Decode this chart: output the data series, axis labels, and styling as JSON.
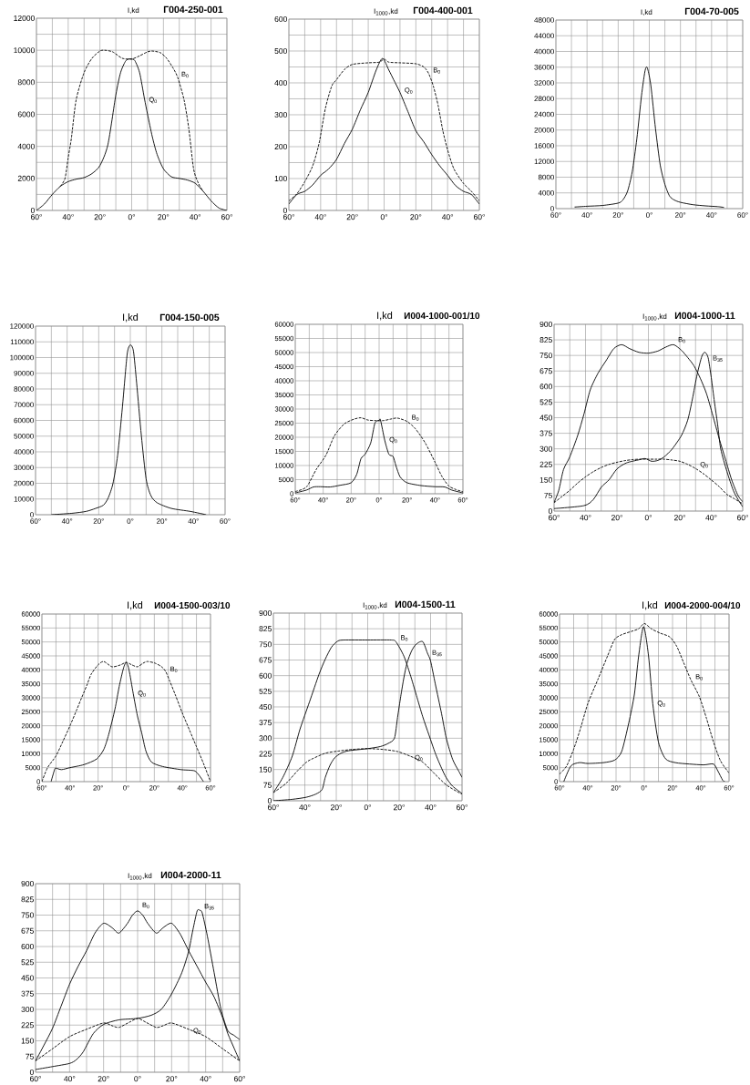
{
  "chart_data": [
    {
      "type": "line",
      "title": "Г004-250-001",
      "ylabel": "I,kd",
      "xlim": [
        -60,
        60
      ],
      "ylim": [
        0,
        12000
      ],
      "grid": true,
      "xticks": [
        {
          "value": -60,
          "label": "60°"
        },
        {
          "value": -50,
          "label": null
        },
        {
          "value": -40,
          "label": "40°"
        },
        {
          "value": -30,
          "label": null
        },
        {
          "value": -20,
          "label": "20°"
        },
        {
          "value": -10,
          "label": null
        },
        {
          "value": 0,
          "label": "0°"
        },
        {
          "value": 10,
          "label": null
        },
        {
          "value": 20,
          "label": "20°"
        },
        {
          "value": 30,
          "label": null
        },
        {
          "value": 40,
          "label": "40°"
        },
        {
          "value": 50,
          "label": null
        },
        {
          "value": 60,
          "label": "60°"
        }
      ],
      "yticks": [
        0,
        {
          "value": 1000,
          "label": null
        },
        2000,
        {
          "value": 3000,
          "label": null
        },
        4000,
        {
          "value": 5000,
          "label": null
        },
        6000,
        {
          "value": 7000,
          "label": null
        },
        8000,
        {
          "value": 9000,
          "label": null
        },
        10000,
        {
          "value": 11000,
          "label": null
        },
        12000
      ],
      "series": [
        {
          "name": "B$_{0}$",
          "color": "#000000",
          "line_style": "dashed",
          "x": [
            -45,
            -42,
            -40,
            -38,
            -35,
            -30,
            -25,
            -20,
            -17,
            -12,
            -6,
            0,
            5,
            10,
            13,
            18,
            22,
            26,
            29,
            33,
            36,
            39,
            42,
            45
          ],
          "values": [
            1500,
            2000,
            3300,
            4500,
            6900,
            8600,
            9500,
            9950,
            10000,
            9900,
            9500,
            9450,
            9650,
            9900,
            9950,
            9850,
            9500,
            8900,
            8300,
            6900,
            5100,
            2600,
            1700,
            1200
          ]
        },
        {
          "name": "Q$_{0}$",
          "color": "#000000",
          "line_style": "solid",
          "x": [
            -60,
            -55,
            -50,
            -45,
            -40,
            -35,
            -30,
            -25,
            -20,
            -15,
            -10,
            -7,
            -4,
            -2,
            0,
            2,
            5,
            8,
            10,
            13,
            16,
            20,
            25,
            30,
            35,
            40,
            45,
            50,
            55,
            60
          ],
          "values": [
            0,
            400,
            1000,
            1500,
            1800,
            1950,
            2050,
            2300,
            2800,
            4100,
            7200,
            8600,
            9300,
            9450,
            9450,
            9350,
            8600,
            7000,
            6000,
            4600,
            3500,
            2600,
            2100,
            2000,
            1900,
            1700,
            1200,
            600,
            150,
            0
          ]
        }
      ]
    },
    {
      "type": "line",
      "title": "Г004-400-001",
      "ylabel": "I$_{1000}$,kd",
      "xlim": [
        -60,
        60
      ],
      "ylim": [
        0,
        600
      ],
      "grid": true,
      "xticks": [
        {
          "value": -60,
          "label": "60°"
        },
        {
          "value": -50,
          "label": null
        },
        {
          "value": -40,
          "label": "40°"
        },
        {
          "value": -30,
          "label": null
        },
        {
          "value": -20,
          "label": "20°"
        },
        {
          "value": -10,
          "label": null
        },
        {
          "value": 0,
          "label": "0°"
        },
        {
          "value": 10,
          "label": null
        },
        {
          "value": 20,
          "label": "20°"
        },
        {
          "value": 30,
          "label": null
        },
        {
          "value": 40,
          "label": "40°"
        },
        {
          "value": 50,
          "label": null
        },
        {
          "value": 60,
          "label": "60°"
        }
      ],
      "yticks": [
        0,
        {
          "value": 50,
          "label": null
        },
        100,
        {
          "value": 150,
          "label": null
        },
        200,
        {
          "value": 250,
          "label": null
        },
        300,
        {
          "value": 350,
          "label": null
        },
        400,
        {
          "value": 450,
          "label": null
        },
        500,
        {
          "value": 550,
          "label": null
        },
        600
      ],
      "series": [
        {
          "name": "B$_{0}$",
          "color": "#000000",
          "line_style": "dashed",
          "x": [
            -60,
            -55,
            -50,
            -45,
            -41,
            -37,
            -33,
            -30,
            -25,
            -20,
            -10,
            -3,
            0,
            3,
            10,
            20,
            25,
            28,
            31,
            34,
            37,
            40,
            44,
            50,
            55,
            60
          ],
          "values": [
            30,
            52,
            90,
            140,
            210,
            320,
            390,
            410,
            442,
            458,
            463,
            465,
            475,
            465,
            463,
            460,
            450,
            430,
            390,
            330,
            250,
            190,
            130,
            85,
            60,
            30
          ]
        },
        {
          "name": "Q$_{0}$",
          "color": "#000000",
          "line_style": "solid",
          "x": [
            -60,
            -55,
            -50,
            -45,
            -40,
            -35,
            -30,
            -25,
            -20,
            -15,
            -10,
            -5,
            -1,
            3,
            6,
            10,
            15,
            20,
            25,
            30,
            35,
            40,
            45,
            50,
            55,
            60
          ],
          "values": [
            20,
            50,
            60,
            80,
            110,
            130,
            160,
            210,
            255,
            315,
            370,
            440,
            477,
            440,
            410,
            370,
            310,
            250,
            215,
            175,
            140,
            110,
            78,
            60,
            50,
            20
          ]
        }
      ]
    },
    {
      "type": "line",
      "title": "Г004-70-005",
      "ylabel": "I,kd",
      "xlim": [
        -60,
        60
      ],
      "ylim": [
        0,
        48000
      ],
      "grid": true,
      "xticks": [
        {
          "value": -60,
          "label": "60°"
        },
        {
          "value": -50,
          "label": null
        },
        {
          "value": -40,
          "label": "40°"
        },
        {
          "value": -30,
          "label": null
        },
        {
          "value": -20,
          "label": "20°"
        },
        {
          "value": -10,
          "label": null
        },
        {
          "value": 0,
          "label": "0°"
        },
        {
          "value": 10,
          "label": null
        },
        {
          "value": 20,
          "label": "20°"
        },
        {
          "value": 30,
          "label": null
        },
        {
          "value": 40,
          "label": "40°"
        },
        {
          "value": 50,
          "label": null
        },
        {
          "value": 60,
          "label": "60°"
        }
      ],
      "yticks": [
        0,
        4000,
        8000,
        12000,
        16000,
        20000,
        24000,
        28000,
        32000,
        36000,
        40000,
        44000,
        48000
      ],
      "series": [
        {
          "color": "#000000",
          "line_style": "solid",
          "x": [
            -48,
            -40,
            -30,
            -20,
            -17,
            -14,
            -11,
            -8,
            -5,
            -3,
            -2,
            -1,
            1,
            4,
            7,
            10,
            13,
            16,
            20,
            28,
            36,
            44,
            48
          ],
          "values": [
            400,
            600,
            800,
            1400,
            2200,
            4400,
            9300,
            17800,
            28800,
            34500,
            36000,
            35500,
            31300,
            20300,
            11100,
            6200,
            3200,
            2200,
            1600,
            1000,
            700,
            500,
            300
          ]
        }
      ]
    },
    {
      "type": "line",
      "title": "Г004-150-005",
      "ylabel": "I,kd",
      "xlim": [
        -60,
        60
      ],
      "ylim": [
        0,
        120000
      ],
      "grid": true,
      "xticks": [
        {
          "value": -60,
          "label": "60°"
        },
        {
          "value": -50,
          "label": null
        },
        {
          "value": -40,
          "label": "40°"
        },
        {
          "value": -30,
          "label": null
        },
        {
          "value": -20,
          "label": "20°"
        },
        {
          "value": -10,
          "label": null
        },
        {
          "value": 0,
          "label": "0°"
        },
        {
          "value": 10,
          "label": null
        },
        {
          "value": 20,
          "label": "20°"
        },
        {
          "value": 30,
          "label": null
        },
        {
          "value": 40,
          "label": "40°"
        },
        {
          "value": 50,
          "label": null
        },
        {
          "value": 60,
          "label": "60°"
        }
      ],
      "yticks": [
        0,
        10000,
        20000,
        30000,
        40000,
        50000,
        60000,
        70000,
        80000,
        90000,
        100000,
        110000,
        120000
      ],
      "series": [
        {
          "color": "#000000",
          "line_style": "solid",
          "x": [
            -50,
            -37,
            -28,
            -22,
            -17,
            -14,
            -11,
            -8,
            -5,
            -2,
            0,
            2,
            4,
            7,
            10,
            13,
            17,
            26,
            38,
            48
          ],
          "values": [
            0,
            900,
            2100,
            4000,
            6100,
            10700,
            19800,
            38000,
            68500,
            102000,
            108000,
            104000,
            83800,
            50300,
            22800,
            12200,
            7600,
            4000,
            2100,
            0
          ]
        }
      ]
    },
    {
      "type": "line",
      "title": "И004-1000-001/10",
      "ylabel": "I,kd",
      "xlim": [
        -60,
        60
      ],
      "ylim": [
        0,
        60000
      ],
      "grid": true,
      "xticks": [
        {
          "value": -60,
          "label": "60°"
        },
        {
          "value": -50,
          "label": null
        },
        {
          "value": -40,
          "label": "40°"
        },
        {
          "value": -30,
          "label": null
        },
        {
          "value": -20,
          "label": "20°"
        },
        {
          "value": -10,
          "label": null
        },
        {
          "value": 0,
          "label": "0°"
        },
        {
          "value": 10,
          "label": null
        },
        {
          "value": 20,
          "label": "20°"
        },
        {
          "value": 30,
          "label": null
        },
        {
          "value": 40,
          "label": "40°"
        },
        {
          "value": 50,
          "label": null
        },
        {
          "value": 60,
          "label": "60°"
        }
      ],
      "yticks": [
        0,
        5000,
        10000,
        15000,
        20000,
        25000,
        30000,
        35000,
        40000,
        45000,
        50000,
        55000,
        60000
      ],
      "series": [
        {
          "name": "B$_{0}$",
          "color": "#000000",
          "line_style": "dashed",
          "x": [
            -60,
            -52,
            -45,
            -38,
            -32,
            -25,
            -18,
            -13,
            -8,
            -3,
            3,
            8,
            13,
            20,
            26,
            33,
            40,
            45,
            50,
            55,
            60
          ],
          "values": [
            800,
            2400,
            8600,
            13700,
            20500,
            24700,
            26400,
            26900,
            26100,
            25900,
            25900,
            26400,
            26800,
            25600,
            23000,
            18000,
            11200,
            6100,
            2700,
            1500,
            700
          ]
        },
        {
          "name": "Q$_{0}$",
          "color": "#000000",
          "line_style": "solid",
          "x": [
            -60,
            -52,
            -47,
            -42,
            -35,
            -28,
            -20,
            -16,
            -13,
            -10,
            -6,
            -3,
            0,
            1,
            4,
            7,
            10,
            12,
            15,
            20,
            30,
            40,
            47,
            52,
            60
          ],
          "values": [
            300,
            1300,
            2400,
            2500,
            2400,
            3000,
            3900,
            6900,
            12400,
            14000,
            18000,
            25000,
            26000,
            26100,
            19000,
            14000,
            13200,
            10000,
            6000,
            3900,
            2900,
            2500,
            2400,
            1300,
            300
          ]
        }
      ]
    },
    {
      "type": "line",
      "title": "И004-1000-11",
      "ylabel": "I$_{1000}$,kd",
      "xlim": [
        -60,
        60
      ],
      "ylim": [
        0,
        900
      ],
      "grid": true,
      "xticks": [
        {
          "value": -60,
          "label": "60°"
        },
        {
          "value": -50,
          "label": null
        },
        {
          "value": -40,
          "label": "40°"
        },
        {
          "value": -30,
          "label": null
        },
        {
          "value": -20,
          "label": "20°"
        },
        {
          "value": -10,
          "label": null
        },
        {
          "value": 0,
          "label": "0°"
        },
        {
          "value": 10,
          "label": null
        },
        {
          "value": 20,
          "label": "20°"
        },
        {
          "value": 30,
          "label": null
        },
        {
          "value": 40,
          "label": "40°"
        },
        {
          "value": 50,
          "label": null
        },
        {
          "value": 60,
          "label": "60°"
        }
      ],
      "yticks": [
        0,
        75,
        150,
        225,
        300,
        375,
        450,
        525,
        600,
        675,
        750,
        825,
        900
      ],
      "series": [
        {
          "name": "B$_{0}$",
          "color": "#000000",
          "line_style": "solid",
          "x": [
            -60,
            -57,
            -54,
            -50,
            -45,
            -41,
            -37,
            -32,
            -27,
            -22,
            -17,
            -12,
            -6,
            0,
            6,
            11,
            16,
            21,
            25,
            29,
            33,
            37,
            41,
            45,
            49,
            53,
            57,
            60
          ],
          "values": [
            41,
            100,
            200,
            261,
            364,
            467,
            584,
            665,
            724,
            783,
            802,
            783,
            765,
            761,
            771,
            790,
            802,
            775,
            740,
            700,
            640,
            565,
            460,
            350,
            250,
            150,
            75,
            45
          ]
        },
        {
          "name": "B$_{35}$",
          "color": "#000000",
          "line_style": "solid",
          "x": [
            -60,
            -41,
            -35,
            -30,
            -25,
            -20,
            -14,
            -6,
            -2,
            2,
            6,
            10,
            15,
            21,
            25,
            28,
            31,
            34,
            36,
            38,
            40,
            42,
            44,
            46,
            50,
            54,
            57,
            60
          ],
          "values": [
            12,
            26,
            56,
            115,
            151,
            203,
            232,
            247,
            253,
            240,
            244,
            261,
            298,
            364,
            438,
            540,
            658,
            746,
            765,
            739,
            643,
            526,
            420,
            300,
            190,
            100,
            56,
            20
          ]
        },
        {
          "name": "Q$_{0}$",
          "color": "#000000",
          "line_style": "dashed",
          "x": [
            -60,
            -55,
            -50,
            -45,
            -40,
            -35,
            -30,
            -25,
            -20,
            -15,
            -10,
            -5,
            0,
            5,
            10,
            15,
            20,
            25,
            30,
            35,
            40,
            45,
            50,
            55,
            60
          ],
          "values": [
            40,
            70,
            100,
            135,
            165,
            190,
            210,
            225,
            235,
            243,
            248,
            250,
            250,
            250,
            250,
            246,
            240,
            225,
            205,
            180,
            150,
            118,
            80,
            58,
            35
          ]
        }
      ]
    },
    {
      "type": "line",
      "title": "И004-1500-003/10",
      "ylabel": "I,kd",
      "xlim": [
        -60,
        60
      ],
      "ylim": [
        0,
        60000
      ],
      "grid": true,
      "xticks": [
        {
          "value": -60,
          "label": "60°"
        },
        {
          "value": -50,
          "label": null
        },
        {
          "value": -40,
          "label": "40°"
        },
        {
          "value": -30,
          "label": null
        },
        {
          "value": -20,
          "label": "20°"
        },
        {
          "value": -10,
          "label": null
        },
        {
          "value": 0,
          "label": "0°"
        },
        {
          "value": 10,
          "label": null
        },
        {
          "value": 20,
          "label": "20°"
        },
        {
          "value": 30,
          "label": null
        },
        {
          "value": 40,
          "label": "40°"
        },
        {
          "value": 50,
          "label": null
        },
        {
          "value": 60,
          "label": "60°"
        }
      ],
      "yticks": [
        0,
        5000,
        10000,
        15000,
        20000,
        25000,
        30000,
        35000,
        40000,
        45000,
        50000,
        55000,
        60000
      ],
      "series": [
        {
          "name": "B$_{0}$",
          "color": "#000000",
          "line_style": "dashed",
          "x": [
            -60,
            -56,
            -50,
            -45,
            -40,
            -35,
            -32,
            -28,
            -25,
            -20,
            -16,
            -10,
            -4,
            0,
            4,
            8,
            12,
            15,
            20,
            25,
            28,
            31,
            35,
            40,
            45,
            50,
            55,
            60
          ],
          "values": [
            0,
            5000,
            9200,
            14500,
            20000,
            26000,
            29700,
            34500,
            38400,
            41800,
            43000,
            41100,
            41800,
            42700,
            41800,
            41100,
            42400,
            43000,
            42500,
            41200,
            39500,
            36000,
            31000,
            24500,
            18500,
            12500,
            6500,
            0
          ]
        },
        {
          "name": "Q$_{0}$",
          "color": "#000000",
          "line_style": "solid",
          "x": [
            -53.5,
            -51,
            -50,
            -46,
            -40,
            -30,
            -21,
            -16,
            -12.5,
            -8,
            -5,
            -2,
            0,
            2,
            5,
            8,
            11,
            14,
            18,
            26,
            39,
            45,
            49,
            52,
            55
          ],
          "values": [
            0,
            4300,
            4800,
            4300,
            5000,
            6100,
            8100,
            11500,
            16800,
            26000,
            34000,
            40500,
            42700,
            40000,
            31500,
            23500,
            17500,
            11000,
            7000,
            5400,
            4300,
            4100,
            3800,
            2200,
            0
          ]
        }
      ]
    },
    {
      "type": "line",
      "title": "И004-1500-11",
      "ylabel": "I$_{1000}$,kd",
      "xlim": [
        -60,
        60
      ],
      "ylim": [
        0,
        900
      ],
      "grid": true,
      "xticks": [
        {
          "value": -60,
          "label": "60°"
        },
        {
          "value": -50,
          "label": null
        },
        {
          "value": -40,
          "label": "40°"
        },
        {
          "value": -30,
          "label": null
        },
        {
          "value": -20,
          "label": "20°"
        },
        {
          "value": -10,
          "label": null
        },
        {
          "value": 0,
          "label": "0°"
        },
        {
          "value": 10,
          "label": null
        },
        {
          "value": 20,
          "label": "20°"
        },
        {
          "value": 30,
          "label": null
        },
        {
          "value": 40,
          "label": "40°"
        },
        {
          "value": 50,
          "label": null
        },
        {
          "value": 60,
          "label": "60°"
        }
      ],
      "yticks": [
        0,
        75,
        150,
        225,
        300,
        375,
        450,
        525,
        600,
        675,
        750,
        825,
        900
      ],
      "series": [
        {
          "name": "B$_{0}$",
          "color": "#000000",
          "line_style": "solid",
          "x": [
            -60,
            -54,
            -48,
            -43,
            -37,
            -31,
            -27,
            -23,
            -19,
            -15,
            0,
            15,
            18,
            23,
            27,
            31,
            35,
            39,
            43,
            47,
            50,
            54,
            60
          ],
          "values": [
            39,
            112,
            214,
            345,
            475,
            606,
            679,
            737,
            766,
            771,
            771,
            771,
            762,
            694,
            606,
            505,
            403,
            315,
            228,
            156,
            110,
            70,
            35
          ]
        },
        {
          "name": "B$_{35}$",
          "color": "#000000",
          "line_style": "solid",
          "x": [
            -60,
            -48,
            -39,
            -33,
            -29,
            -27,
            -24,
            -21,
            -17,
            -12,
            0,
            8,
            13,
            17,
            19,
            21,
            23,
            25,
            28,
            31,
            35,
            38,
            40,
            43,
            47,
            50,
            54,
            58,
            60
          ],
          "values": [
            0,
            7,
            17,
            32,
            54,
            112,
            170,
            206,
            228,
            240,
            250,
            260,
            275,
            300,
            400,
            500,
            590,
            660,
            720,
            752,
            763,
            708,
            670,
            560,
            417,
            300,
            199,
            141,
            112
          ]
        },
        {
          "name": "Q$_{0}$",
          "color": "#000000",
          "line_style": "dashed",
          "x": [
            -60,
            -52,
            -45,
            -39,
            -35,
            -27,
            -19,
            -10,
            0,
            10,
            19,
            27,
            35,
            43,
            50,
            58,
            60
          ],
          "values": [
            39,
            83,
            141,
            185,
            202,
            228,
            238,
            246,
            250,
            246,
            236,
            214,
            185,
            126,
            76,
            39,
            32
          ]
        }
      ]
    },
    {
      "type": "line",
      "title": "И004-2000-004/10",
      "ylabel": "I,kd",
      "xlim": [
        -60,
        60
      ],
      "ylim": [
        0,
        60000
      ],
      "grid": true,
      "xticks": [
        {
          "value": -60,
          "label": "60°"
        },
        {
          "value": -50,
          "label": null
        },
        {
          "value": -40,
          "label": "40°"
        },
        {
          "value": -30,
          "label": null
        },
        {
          "value": -20,
          "label": "20°"
        },
        {
          "value": -10,
          "label": null
        },
        {
          "value": 0,
          "label": "0°"
        },
        {
          "value": 10,
          "label": null
        },
        {
          "value": 20,
          "label": "20°"
        },
        {
          "value": 30,
          "label": null
        },
        {
          "value": 40,
          "label": "40°"
        },
        {
          "value": 50,
          "label": null
        },
        {
          "value": 60,
          "label": "60°"
        }
      ],
      "yticks": [
        0,
        5000,
        10000,
        15000,
        20000,
        25000,
        30000,
        35000,
        40000,
        45000,
        50000,
        55000,
        60000
      ],
      "series": [
        {
          "name": "B$_{0}$",
          "color": "#000000",
          "line_style": "dashed",
          "x": [
            -60,
            -55,
            -50,
            -45,
            -40,
            -33,
            -26,
            -21,
            -16,
            -9,
            -4,
            0,
            5,
            11,
            18,
            23,
            28,
            33,
            39,
            44,
            49,
            54,
            60
          ],
          "values": [
            2700,
            5600,
            11600,
            19300,
            27900,
            36400,
            45000,
            50900,
            52600,
            53800,
            54700,
            56600,
            54700,
            53200,
            51800,
            48400,
            42400,
            36400,
            30400,
            22700,
            14200,
            7400,
            3100
          ]
        },
        {
          "name": "Q$_{0}$",
          "color": "#000000",
          "line_style": "solid",
          "x": [
            -57,
            -52,
            -46,
            -40,
            -29,
            -21,
            -16,
            -11,
            -7,
            -4,
            -0.5,
            3,
            6,
            10,
            15,
            22,
            32,
            42,
            49,
            52,
            55.5,
            57
          ],
          "values": [
            0,
            5600,
            6800,
            6500,
            6800,
            7700,
            10800,
            21000,
            31300,
            45000,
            55500,
            45000,
            27900,
            14200,
            8200,
            6800,
            6300,
            6000,
            6300,
            3900,
            500,
            0
          ]
        }
      ]
    },
    {
      "type": "line",
      "title": "И004-2000-11",
      "ylabel": "I$_{1000}$,kd",
      "xlim": [
        -60,
        60
      ],
      "ylim": [
        0,
        900
      ],
      "grid": true,
      "xticks": [
        {
          "value": -60,
          "label": "60°"
        },
        {
          "value": -50,
          "label": null
        },
        {
          "value": -40,
          "label": "40°"
        },
        {
          "value": -30,
          "label": null
        },
        {
          "value": -20,
          "label": "20°"
        },
        {
          "value": -10,
          "label": null
        },
        {
          "value": 0,
          "label": "0°"
        },
        {
          "value": 10,
          "label": null
        },
        {
          "value": 20,
          "label": "20°"
        },
        {
          "value": 30,
          "label": null
        },
        {
          "value": 40,
          "label": "40°"
        },
        {
          "value": 50,
          "label": null
        },
        {
          "value": 60,
          "label": "60°"
        }
      ],
      "yticks": [
        0,
        75,
        150,
        225,
        300,
        375,
        450,
        525,
        600,
        675,
        750,
        825,
        900
      ],
      "series": [
        {
          "name": "B$_{0}$",
          "color": "#000000",
          "line_style": "solid",
          "x": [
            -60,
            -55,
            -50,
            -45,
            -40,
            -35,
            -30,
            -25,
            -20,
            -15,
            -11,
            -6,
            -3,
            0,
            3,
            6,
            11,
            15,
            20,
            25,
            30,
            35,
            40,
            45,
            50,
            53,
            57,
            60
          ],
          "values": [
            54,
            130,
            210,
            315,
            420,
            505,
            580,
            665,
            711,
            690,
            664,
            710,
            750,
            770,
            750,
            710,
            664,
            690,
            711,
            660,
            580,
            505,
            430,
            359,
            260,
            185,
            110,
            54
          ]
        },
        {
          "name": "B$_{35}$",
          "color": "#000000",
          "line_style": "solid",
          "x": [
            -60,
            -50,
            -40,
            -36,
            -32,
            -26,
            -20,
            -11,
            0,
            8,
            14,
            20,
            26,
            30,
            32.5,
            35,
            36.5,
            38,
            41,
            45,
            49,
            53,
            56.5,
            60
          ],
          "values": [
            13,
            27,
            42,
            60,
            97,
            185,
            228,
            250,
            257,
            272,
            301,
            374,
            475,
            577,
            679,
            770,
            773,
            760,
            650,
            475,
            301,
            199,
            177,
            156
          ]
        },
        {
          "name": "Q$_{0}$",
          "color": "#000000",
          "line_style": "dashed",
          "x": [
            -60,
            -50,
            -40,
            -30,
            -20,
            -15,
            -11,
            -5,
            0,
            5,
            11,
            15,
            20,
            30,
            40,
            50,
            60
          ],
          "values": [
            54,
            112,
            170,
            205,
            235,
            222,
            214,
            238,
            257,
            238,
            214,
            222,
            235,
            205,
            170,
            112,
            54
          ]
        }
      ]
    }
  ]
}
